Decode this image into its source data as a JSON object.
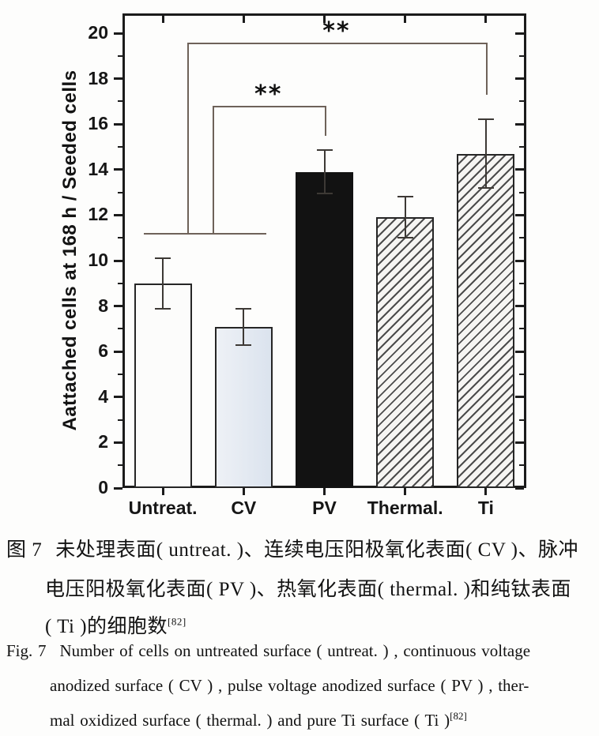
{
  "figure": {
    "caption_zh": {
      "tag": "图 7",
      "lines": [
        "未处理表面( untreat. )、连续电压阳极氧化表面( CV )、脉冲",
        "电压阳极氧化表面( PV )、热氧化表面( thermal. )和纯钛表面",
        "( Ti )的细胞数"
      ],
      "ref": "[82]"
    },
    "caption_en": {
      "tag": "Fig. 7",
      "lines": [
        "Number of cells on untreated surface ( untreat. ) , continuous voltage",
        "anodized surface ( CV ) , pulse voltage anodized surface ( PV ) , ther-",
        "mal oxidized surface ( thermal. ) and pure Ti surface ( Ti )"
      ],
      "ref": "[82]"
    }
  },
  "chart_data": {
    "type": "bar",
    "title": "",
    "xlabel": "",
    "ylabel": "Aattached cells at 168 h / Seeded cells",
    "categories": [
      "Untreat.",
      "CV",
      "PV",
      "Thermal.",
      "Ti"
    ],
    "values": [
      9.0,
      7.1,
      13.9,
      11.9,
      14.7
    ],
    "error_bars": [
      1.1,
      0.8,
      0.95,
      0.9,
      1.5
    ],
    "ylim": [
      0,
      20.87
    ],
    "y_ticks": [
      0,
      2,
      4,
      6,
      8,
      10,
      12,
      14,
      16,
      18,
      20
    ],
    "minor_tick_step": 1,
    "grid": false,
    "legend": "none",
    "bar_styles": [
      "white",
      "lightblue",
      "solid-black",
      "hatched",
      "hatched"
    ],
    "annotations": {
      "base_line": {
        "covers": [
          "Untreat.",
          "CV"
        ],
        "y": 11.2
      },
      "comparisons": [
        {
          "label": "**",
          "to": "PV",
          "y": 16.8,
          "stem_bottom": 15.5
        },
        {
          "label": "**",
          "to": "Ti",
          "y": 19.6,
          "stem_bottom": 17.3
        }
      ]
    },
    "colors": {
      "axis": "#1b1b1b",
      "bar_outline": "#262626",
      "cv_fill": "#dde5ef",
      "pv_fill": "#121212",
      "error_bar": "#3d3935",
      "bracket": "#6e6259"
    }
  }
}
